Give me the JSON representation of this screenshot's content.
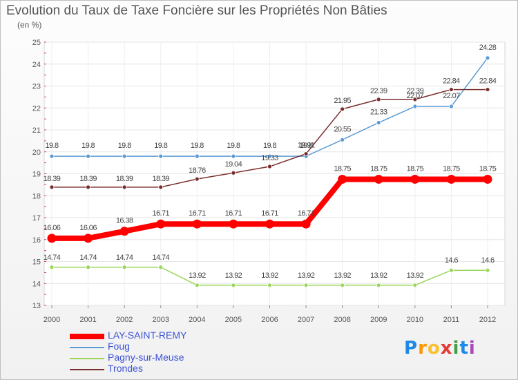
{
  "chart_data": {
    "type": "line",
    "title": "Evolution du Taux de Taxe Foncière sur les Propriétés Non Bâties",
    "subtitle": "(en %)",
    "xlabel": "",
    "ylabel": "",
    "ylim": [
      13,
      25
    ],
    "yticks": [
      "13",
      "14",
      "15",
      "16",
      "17",
      "18",
      "19",
      "20",
      "21",
      "22",
      "23",
      "24",
      "25"
    ],
    "categories": [
      "2000",
      "2001",
      "2002",
      "2003",
      "2004",
      "2005",
      "2006",
      "2007",
      "2008",
      "2009",
      "2010",
      "2011",
      "2012"
    ],
    "grid": true,
    "legend_position": "bottom-left",
    "series": [
      {
        "name": "LAY-SAINT-REMY",
        "color": "#ff0000",
        "values": [
          16.06,
          16.06,
          16.38,
          16.71,
          16.71,
          16.71,
          16.71,
          16.71,
          18.75,
          18.75,
          18.75,
          18.75,
          18.75
        ],
        "labels": [
          "16.06",
          "16.06",
          "16.38",
          "16.71",
          "16.71",
          "16.71",
          "16.71",
          "16.71",
          "18.75",
          "18.75",
          "18.75",
          "18.75",
          "18.75"
        ]
      },
      {
        "name": "Foug",
        "color": "#5b9bd5",
        "values": [
          19.8,
          19.8,
          19.8,
          19.8,
          19.8,
          19.8,
          19.8,
          19.8,
          20.55,
          21.33,
          22.07,
          22.07,
          24.28
        ],
        "labels": [
          "19.8",
          "19.8",
          "19.8",
          "19.8",
          "19.8",
          "19.8",
          "19.8",
          "19.8",
          "20.55",
          "21.33",
          "22.07",
          "22.07",
          "24.28"
        ]
      },
      {
        "name": "Pagny-sur-Meuse",
        "color": "#99d65a",
        "values": [
          14.74,
          14.74,
          14.74,
          14.74,
          13.92,
          13.92,
          13.92,
          13.92,
          13.92,
          13.92,
          13.92,
          14.6,
          14.6
        ],
        "labels": [
          "14.74",
          "14.74",
          "14.74",
          "14.74",
          "13.92",
          "13.92",
          "13.92",
          "13.92",
          "13.92",
          "13.92",
          "13.92",
          "14.6",
          "14.6"
        ]
      },
      {
        "name": "Trondes",
        "color": "#7a2d2d",
        "values": [
          18.39,
          18.39,
          18.39,
          18.39,
          18.76,
          19.04,
          19.33,
          19.91,
          21.95,
          22.39,
          22.39,
          22.84,
          22.84
        ],
        "labels": [
          "18.39",
          "18.39",
          "18.39",
          "18.39",
          "18.76",
          "19.04",
          "19.33",
          "19.91",
          "21.95",
          "22.39",
          "22.39",
          "22.84",
          "22.84"
        ]
      }
    ]
  },
  "logo": {
    "letters": [
      "P",
      "r",
      "o",
      "x",
      "i",
      "t",
      "i"
    ],
    "colors": [
      "#1e88e5",
      "#ff9800",
      "#fbc02d",
      "#e53935",
      "#43a047",
      "#1e88e5",
      "#ab47bc"
    ]
  }
}
